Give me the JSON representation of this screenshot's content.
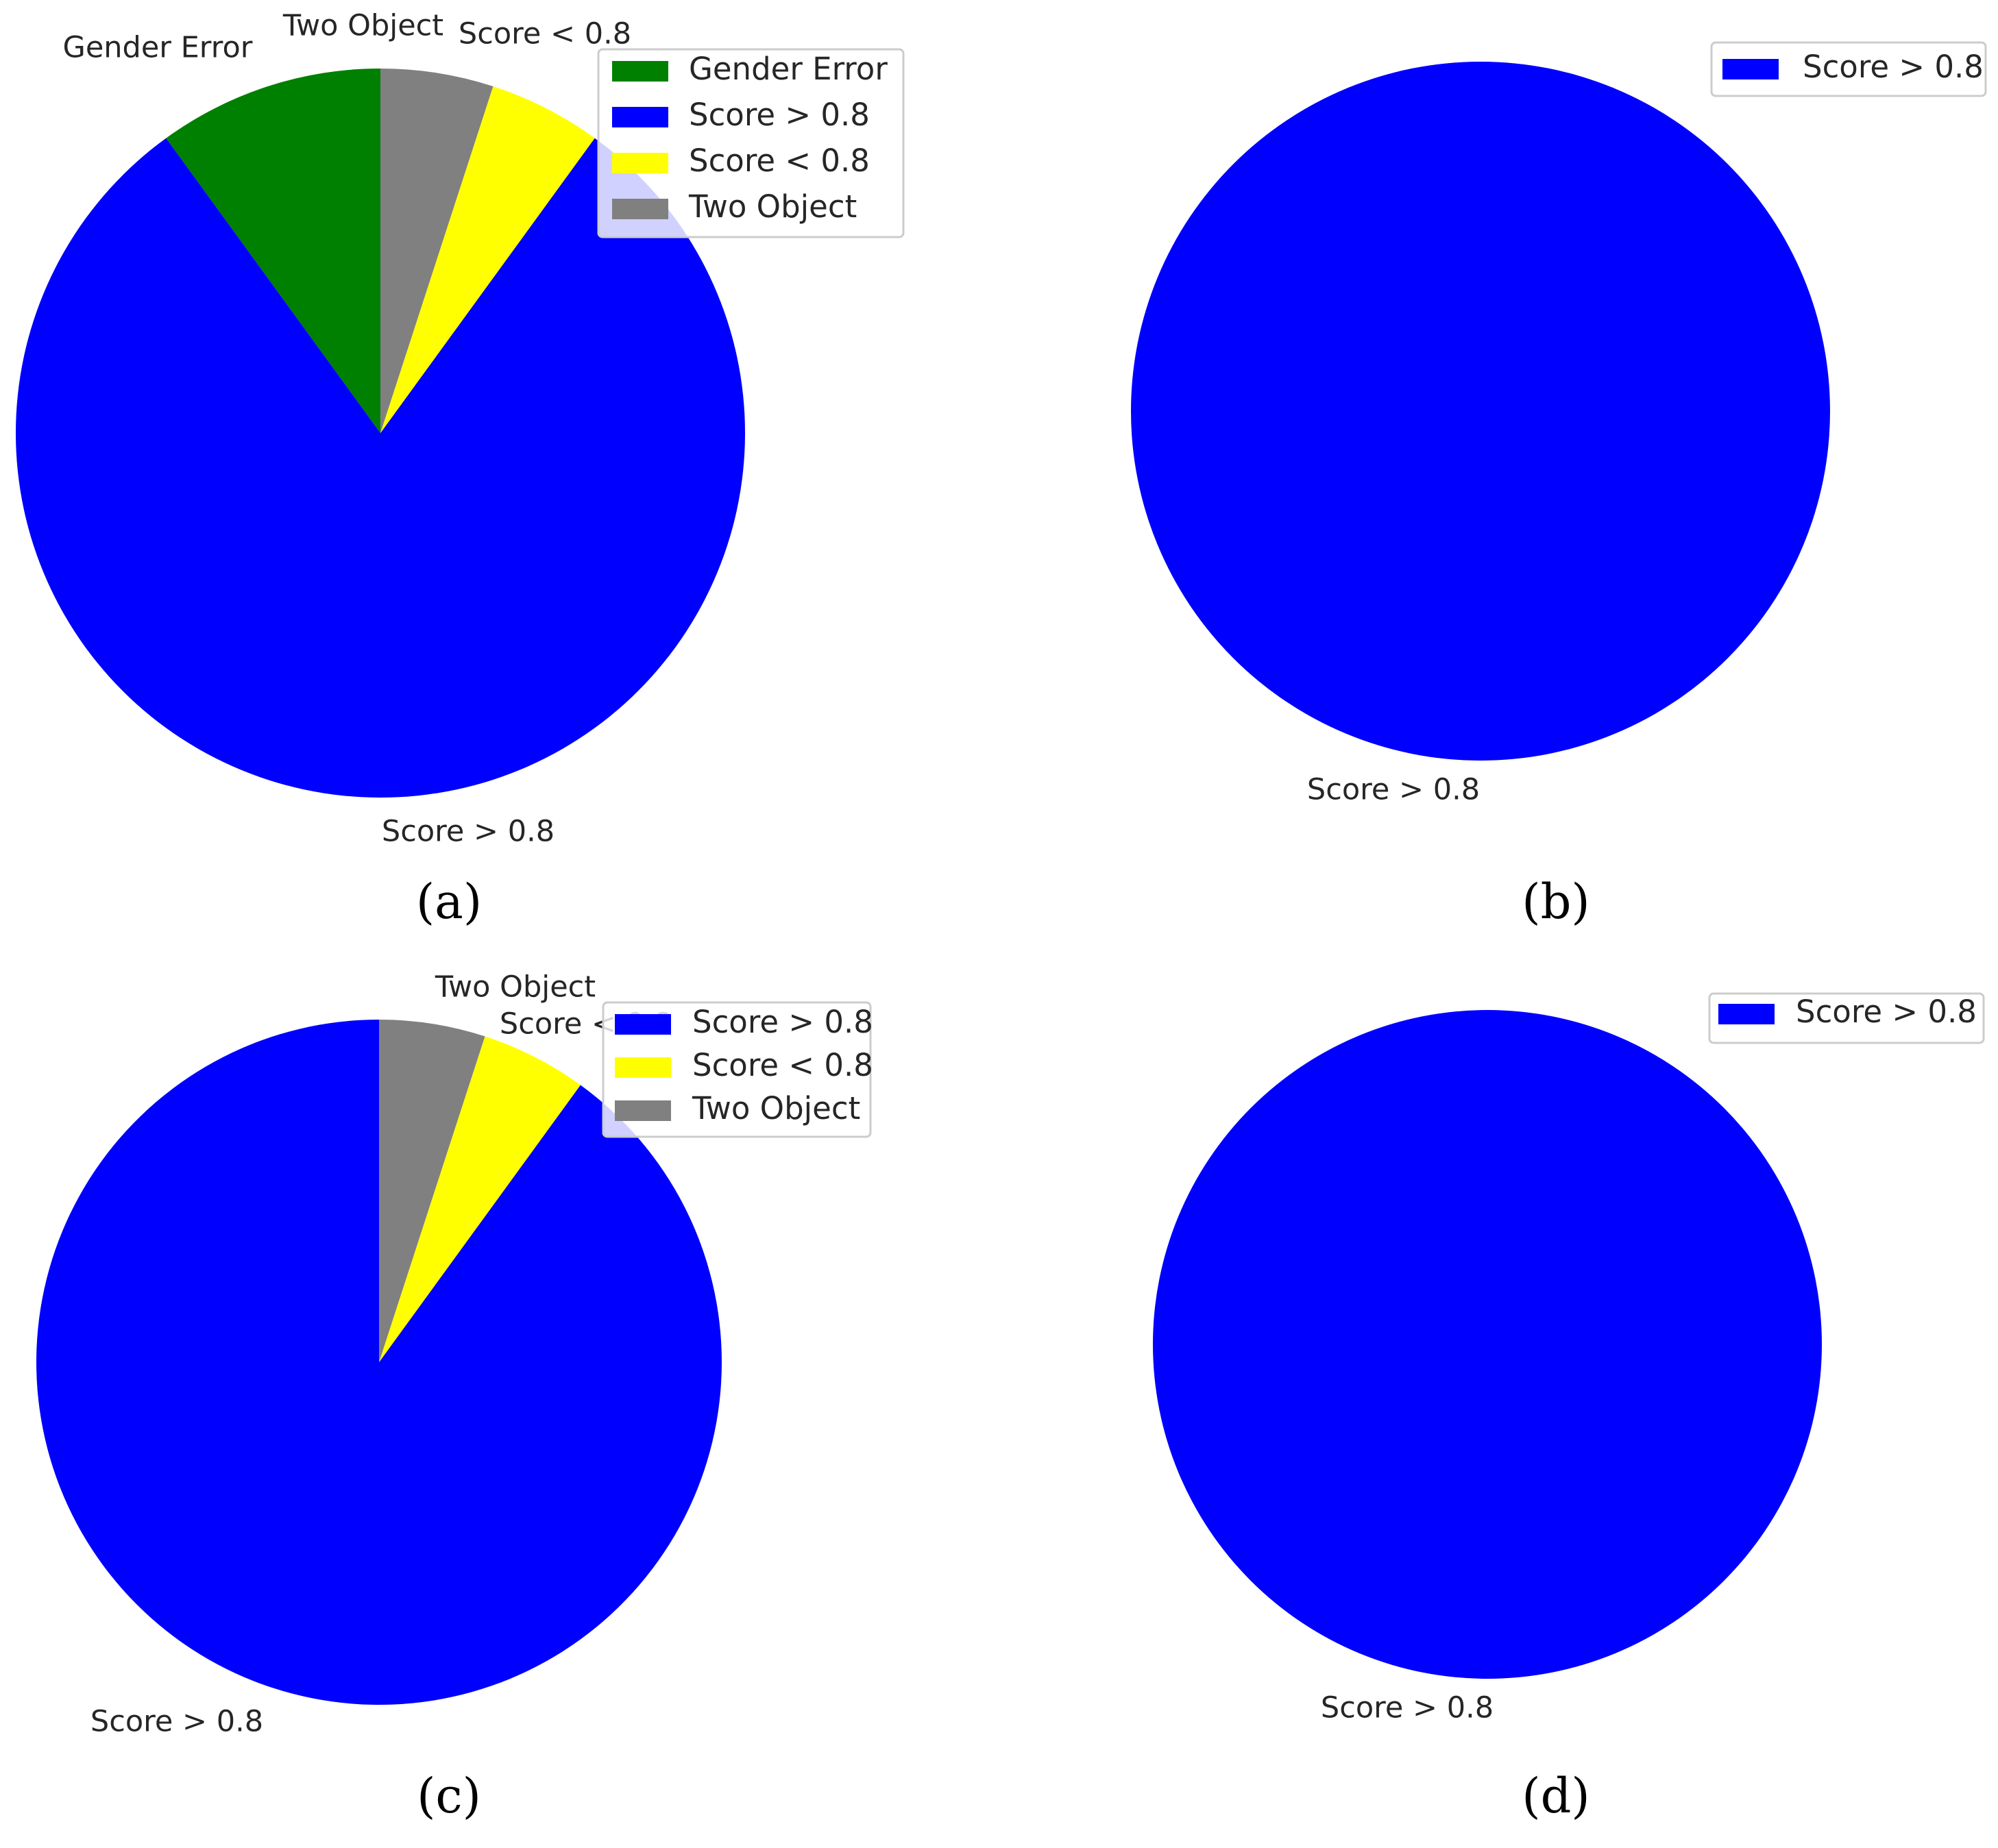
{
  "chart_data": [
    {
      "type": "pie",
      "panel_label": "(a)",
      "slices": [
        {
          "label": "Gender Error",
          "value": 10,
          "color": "#008000"
        },
        {
          "label": "Score > 0.8",
          "value": 80,
          "color": "#0000ff"
        },
        {
          "label": "Score < 0.8",
          "value": 5,
          "color": "#ffff00"
        },
        {
          "label": "Two Object",
          "value": 5,
          "color": "#808080"
        }
      ],
      "legend": [
        "Gender Error",
        "Score > 0.8",
        "Score < 0.8",
        "Two Object"
      ],
      "legend_position": "top-right"
    },
    {
      "type": "pie",
      "panel_label": "(b)",
      "slices": [
        {
          "label": "Score > 0.8",
          "value": 100,
          "color": "#0000ff"
        }
      ],
      "legend": [
        "Score > 0.8"
      ],
      "legend_position": "top-right"
    },
    {
      "type": "pie",
      "panel_label": "(c)",
      "slices": [
        {
          "label": "Score > 0.8",
          "value": 90,
          "color": "#0000ff"
        },
        {
          "label": "Score < 0.8",
          "value": 5,
          "color": "#ffff00"
        },
        {
          "label": "Two Object",
          "value": 5,
          "color": "#808080"
        }
      ],
      "legend": [
        "Score > 0.8",
        "Score < 0.8",
        "Two Object"
      ],
      "legend_position": "top-right"
    },
    {
      "type": "pie",
      "panel_label": "(d)",
      "slices": [
        {
          "label": "Score > 0.8",
          "value": 100,
          "color": "#0000ff"
        }
      ],
      "legend": [
        "Score > 0.8"
      ],
      "legend_position": "top-right"
    }
  ]
}
